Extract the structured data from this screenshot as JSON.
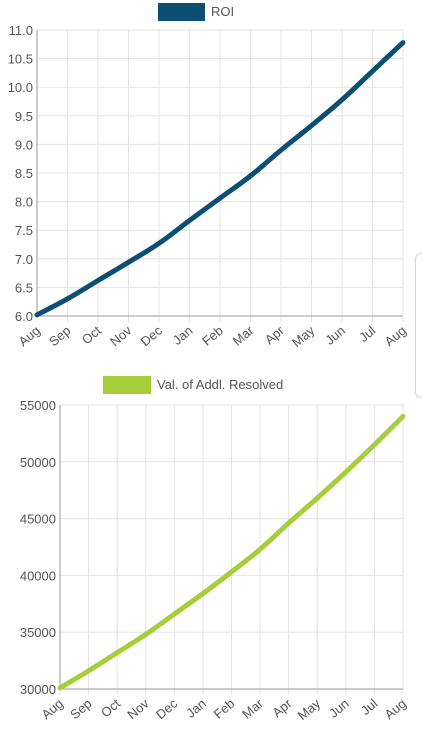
{
  "colors": {
    "roi": "#0d4f73",
    "resolved": "#a6ce39"
  },
  "chart_data": [
    {
      "type": "line",
      "categories": [
        "Aug",
        "Sep",
        "Oct",
        "Nov",
        "Dec",
        "Jan",
        "Feb",
        "Mar",
        "Apr",
        "May",
        "Jun",
        "Jul",
        "Aug"
      ],
      "series": [
        {
          "name": "ROI",
          "values": [
            6.02,
            6.3,
            6.62,
            6.94,
            7.27,
            7.67,
            8.06,
            8.45,
            8.9,
            9.33,
            9.78,
            10.28,
            10.78
          ]
        }
      ],
      "ylim": [
        6.0,
        11.0
      ],
      "yticks": [
        "6.0",
        "6.5",
        "7.0",
        "7.5",
        "8.0",
        "8.5",
        "9.0",
        "9.5",
        "10.0",
        "10.5",
        "11.0"
      ],
      "grid": true,
      "legend": "top-center"
    },
    {
      "type": "line",
      "categories": [
        "Aug",
        "Sep",
        "Oct",
        "Nov",
        "Dec",
        "Jan",
        "Feb",
        "Mar",
        "Apr",
        "May",
        "Jun",
        "Jul",
        "Aug"
      ],
      "series": [
        {
          "name": "Val. of Addl. Resolved",
          "values": [
            30100,
            31600,
            33200,
            34800,
            36600,
            38400,
            40300,
            42300,
            44600,
            46800,
            49100,
            51500,
            54000
          ]
        }
      ],
      "ylim": [
        30000,
        55000
      ],
      "yticks": [
        "30000",
        "35000",
        "40000",
        "45000",
        "50000",
        "55000"
      ],
      "grid": true,
      "legend": "top-center"
    }
  ]
}
